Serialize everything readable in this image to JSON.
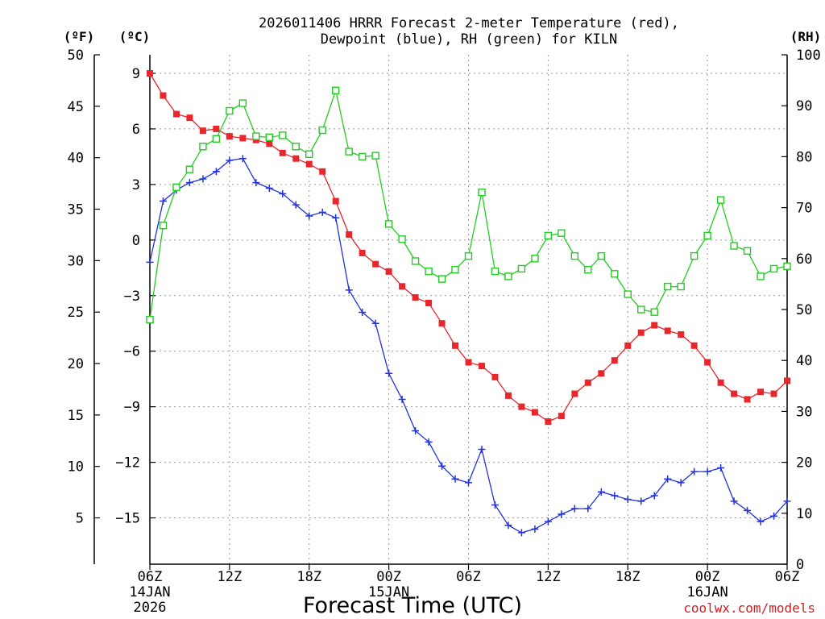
{
  "chart_data": {
    "type": "line",
    "title_lines": [
      "2026011406 HRRR Forecast 2-meter Temperature (red),",
      "Dewpoint (blue), RH (green) for KILN"
    ],
    "xlabel": "Forecast Time (UTC)",
    "credit": "coolwx.com/models",
    "unit_f": "(ºF)",
    "unit_c": "(ºC)",
    "unit_rh": "(RH)",
    "xlim": [
      0,
      48
    ],
    "celsius_range": [
      -17.5,
      10
    ],
    "rh_range": [
      0,
      100
    ],
    "x_ticks": [
      {
        "x": 0,
        "label": "06Z",
        "date": "14JAN",
        "year": "2026"
      },
      {
        "x": 6,
        "label": "12Z"
      },
      {
        "x": 12,
        "label": "18Z"
      },
      {
        "x": 18,
        "label": "00Z",
        "date": "15JAN"
      },
      {
        "x": 24,
        "label": "06Z"
      },
      {
        "x": 30,
        "label": "12Z"
      },
      {
        "x": 36,
        "label": "18Z"
      },
      {
        "x": 42,
        "label": "00Z",
        "date": "16JAN"
      },
      {
        "x": 48,
        "label": "06Z"
      }
    ],
    "celsius_ticks": [
      "9",
      "6",
      "3",
      "0",
      "−3",
      "−6",
      "−9",
      "−12",
      "−15"
    ],
    "fahrenheit_ticks": [
      "5",
      "10",
      "15",
      "20",
      "25",
      "30",
      "35",
      "40",
      "45",
      "50"
    ],
    "rh_ticks": [
      "0",
      "10",
      "20",
      "30",
      "40",
      "50",
      "60",
      "70",
      "80",
      "90",
      "100"
    ],
    "series": [
      {
        "name": "2-meter Temperature",
        "color": "#e8262c",
        "axis": "celsius",
        "marker": "filled-square",
        "values": [
          9.0,
          7.8,
          6.8,
          6.6,
          5.9,
          6.0,
          5.6,
          5.5,
          5.4,
          5.2,
          4.7,
          4.4,
          4.1,
          3.7,
          2.1,
          0.3,
          -0.7,
          -1.3,
          -1.7,
          -2.5,
          -3.1,
          -3.4,
          -4.5,
          -5.7,
          -6.6,
          -6.8,
          -7.4,
          -8.4,
          -9.0,
          -9.3,
          -9.8,
          -9.5,
          -8.3,
          -7.7,
          -7.2,
          -6.5,
          -5.7,
          -5.0,
          -4.6,
          -4.9,
          -5.1,
          -5.7,
          -6.6,
          -7.7,
          -8.3,
          -8.6,
          -8.2,
          -8.3,
          -7.6
        ]
      },
      {
        "name": "Dewpoint",
        "color": "#2233dd",
        "axis": "celsius",
        "marker": "plus",
        "values": [
          -1.2,
          2.1,
          2.7,
          3.1,
          3.3,
          3.7,
          4.3,
          4.4,
          3.1,
          2.8,
          2.5,
          1.9,
          1.3,
          1.5,
          1.2,
          -2.7,
          -3.9,
          -4.5,
          -7.2,
          -8.6,
          -10.3,
          -10.9,
          -12.2,
          -12.9,
          -13.1,
          -11.3,
          -14.3,
          -15.4,
          -15.8,
          -15.6,
          -15.2,
          -14.8,
          -14.5,
          -14.5,
          -13.6,
          -13.8,
          -14.0,
          -14.1,
          -13.8,
          -12.9,
          -13.1,
          -12.5,
          -12.5,
          -12.3,
          -14.1,
          -14.6,
          -15.2,
          -14.9,
          -14.1
        ]
      },
      {
        "name": "RH",
        "color": "#22cc22",
        "axis": "rh",
        "marker": "open-square",
        "values": [
          48.0,
          66.5,
          74.0,
          77.5,
          82.0,
          83.5,
          89.0,
          90.5,
          84.0,
          83.8,
          84.2,
          82.0,
          80.5,
          85.2,
          93.0,
          81.0,
          80.0,
          80.2,
          66.8,
          63.8,
          59.5,
          57.5,
          56.0,
          57.8,
          60.5,
          73.0,
          57.5,
          56.5,
          58.0,
          60.0,
          64.5,
          65.0,
          60.5,
          57.8,
          60.5,
          57.0,
          53.0,
          50.0,
          49.5,
          54.5,
          54.5,
          60.5,
          64.5,
          71.5,
          62.5,
          61.5,
          56.5,
          58.0,
          58.5
        ]
      }
    ]
  }
}
